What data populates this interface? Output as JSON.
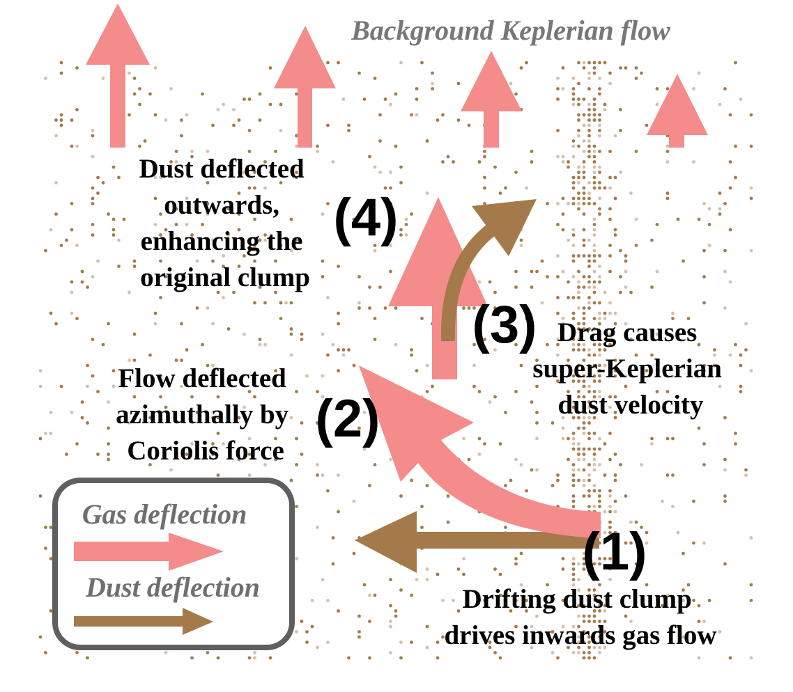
{
  "colors": {
    "gas": "#f48c8c",
    "dust": "#a57a4b",
    "dust_light": "#d6c0a8",
    "background": "#ffffff",
    "title_text": "#777777",
    "legend_text": "#6f6f6f",
    "legend_border": "#5f5f5f",
    "body_text": "#000000"
  },
  "title": "Background Keplerian flow",
  "steps": [
    {
      "number": "(1)",
      "text": [
        "Drifting dust clump",
        "drives inwards gas flow"
      ]
    },
    {
      "number": "(2)",
      "text": [
        "Flow deflected",
        "azimuthally by",
        "Coriolis force"
      ]
    },
    {
      "number": "(3)",
      "text": [
        "Drag causes",
        "super-Keplerian",
        "dust velocity"
      ]
    },
    {
      "number": "(4)",
      "text": [
        "Dust deflected",
        "outwards,",
        "enhancing the",
        "original clump"
      ]
    }
  ],
  "legend": {
    "gas_label": "Gas deflection",
    "dust_label": "Dust deflection"
  }
}
